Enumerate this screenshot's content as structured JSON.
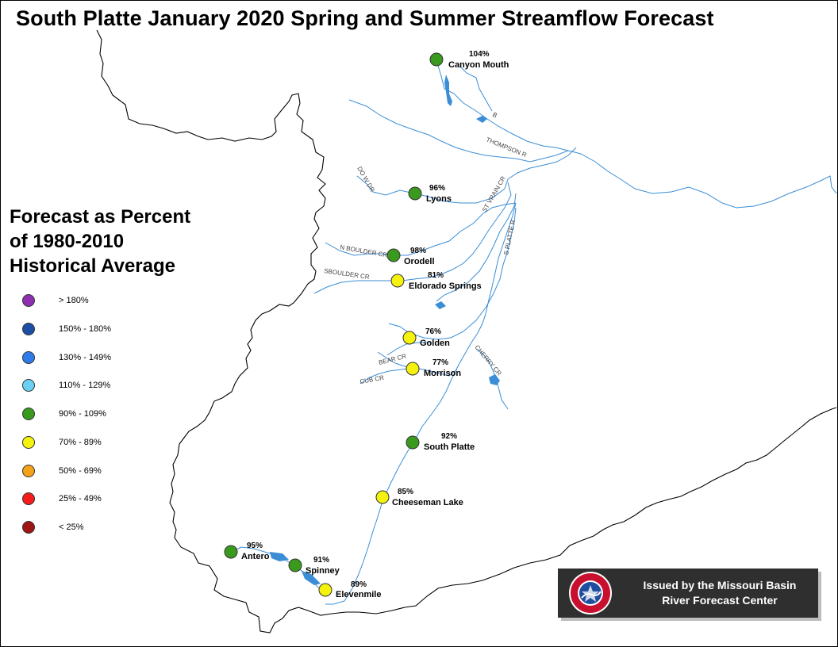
{
  "title": "South Platte January 2020 Spring and Summer Streamflow Forecast",
  "legend": {
    "title_lines": [
      "Forecast as Percent",
      "of 1980-2010",
      "Historical Average"
    ],
    "items": [
      {
        "label": "> 180%",
        "color": "#8e2fb0"
      },
      {
        "label": "150% - 180%",
        "color": "#1b4fa6"
      },
      {
        "label": "130% - 149%",
        "color": "#2f7bea"
      },
      {
        "label": "110% - 129%",
        "color": "#6ad1f5"
      },
      {
        "label": "90% - 109%",
        "color": "#3a9a1e"
      },
      {
        "label": "70% - 89%",
        "color": "#f5f20e"
      },
      {
        "label": "50% - 69%",
        "color": "#f5a11a"
      },
      {
        "label": "25% - 49%",
        "color": "#f51c1c"
      },
      {
        "label": "< 25%",
        "color": "#a01414"
      }
    ]
  },
  "stations": [
    {
      "name": "Canyon Mouth",
      "percent": "104%",
      "color": "#3a9a1e"
    },
    {
      "name": "Lyons",
      "percent": "96%",
      "color": "#3a9a1e"
    },
    {
      "name": "Orodell",
      "percent": "98%",
      "color": "#3a9a1e"
    },
    {
      "name": "Eldorado Springs",
      "percent": "81%",
      "color": "#f5f20e"
    },
    {
      "name": "Golden",
      "percent": "76%",
      "color": "#f5f20e"
    },
    {
      "name": "Morrison",
      "percent": "77%",
      "color": "#f5f20e"
    },
    {
      "name": "South Platte",
      "percent": "92%",
      "color": "#3a9a1e"
    },
    {
      "name": "Cheeseman Lake",
      "percent": "85%",
      "color": "#f5f20e"
    },
    {
      "name": "Antero",
      "percent": "95%",
      "color": "#3a9a1e"
    },
    {
      "name": "Spinney",
      "percent": "91%",
      "color": "#3a9a1e"
    },
    {
      "name": "Elevenmile",
      "percent": "89%",
      "color": "#f5f20e"
    }
  ],
  "river_labels": [
    "THOMPSON R",
    "ST VRAIN CR",
    "S PLATTE R",
    "N BOULDER CR",
    "SBOULDER CR",
    "BEAR CR",
    "CUB CR",
    "CHERRY CR",
    "B",
    "DO W DR"
  ],
  "banner": {
    "line1": "Issued by the Missouri Basin",
    "line2": "River Forecast Center",
    "logo_text": "NATIONAL WEATHER SERVICE"
  },
  "colors": {
    "river": "#3b8ed6",
    "boundary": "#000000",
    "banner_bg": "#2f2f2f"
  }
}
